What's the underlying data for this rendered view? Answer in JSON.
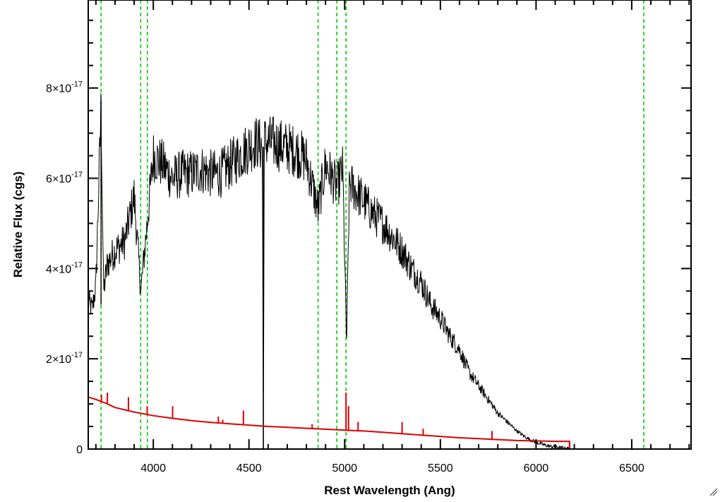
{
  "chart_data": {
    "type": "line",
    "title": "",
    "xlabel": "Rest Wavelength (Ang)",
    "ylabel": "Relative Flux (cgs)",
    "xlim": [
      3660,
      6810
    ],
    "ylim": [
      0,
      9.95e-17
    ],
    "x_ticks": [
      {
        "value": 4000,
        "label": "4000"
      },
      {
        "value": 4500,
        "label": "4500"
      },
      {
        "value": 5000,
        "label": "5000"
      },
      {
        "value": 5500,
        "label": "5500"
      },
      {
        "value": 6000,
        "label": "6000"
      },
      {
        "value": 6500,
        "label": "6500"
      }
    ],
    "y_ticks": [
      {
        "value": 0,
        "mantissa": "0",
        "exponent": ""
      },
      {
        "value": 2e-17,
        "mantissa": "2×10",
        "exponent": "-17"
      },
      {
        "value": 4e-17,
        "mantissa": "4×10",
        "exponent": "-17"
      },
      {
        "value": 6e-17,
        "mantissa": "6×10",
        "exponent": "-17"
      },
      {
        "value": 8e-17,
        "mantissa": "8×10",
        "exponent": "-17"
      }
    ],
    "grid": false,
    "series": [
      {
        "color": "#000000",
        "x": [
          3660,
          3680,
          3700,
          3727,
          3740,
          3760,
          3800,
          3850,
          3900,
          3935,
          3968,
          4000,
          4050,
          4100,
          4150,
          4200,
          4250,
          4300,
          4350,
          4400,
          4450,
          4500,
          4540,
          4570,
          4575,
          4580,
          4620,
          4680,
          4750,
          4800,
          4861,
          4900,
          4959,
          4990,
          5010,
          5025,
          5060,
          5100,
          5150,
          5200,
          5250,
          5300,
          5350,
          5400,
          5450,
          5500,
          5550,
          5600,
          5650,
          5700,
          5750,
          5800,
          5850,
          5900,
          5950,
          6000,
          6050,
          6100,
          6150,
          6175
        ],
        "y": [
          3.3e-17,
          3.1e-17,
          3.6e-17,
          7.6e-17,
          3.5e-17,
          4.1e-17,
          4.4e-17,
          4.6e-17,
          5.6e-17,
          3.5e-17,
          5e-17,
          6.5e-17,
          6.3e-17,
          6e-17,
          6.1e-17,
          6.1e-17,
          6.2e-17,
          6.1e-17,
          6.1e-17,
          6.3e-17,
          6.5e-17,
          6.7e-17,
          6.8e-17,
          6.7e-17,
          2e-18,
          6.8e-17,
          6.8e-17,
          6.7e-17,
          6.6e-17,
          6.4e-17,
          5.3e-17,
          6.3e-17,
          5.8e-17,
          6.2e-17,
          2.3e-17,
          5.9e-17,
          5.7e-17,
          5.5e-17,
          5.2e-17,
          5e-17,
          4.7e-17,
          4.4e-17,
          4e-17,
          3.7e-17,
          3.2e-17,
          2.9e-17,
          2.5e-17,
          2.2e-17,
          1.7e-17,
          1.4e-17,
          1.1e-17,
          8e-18,
          6e-18,
          4e-18,
          2.5e-18,
          1.5e-18,
          8e-19,
          4e-19,
          2e-19,
          1e-19
        ]
      },
      {
        "color": "#dd0000",
        "x": [
          3660,
          3700,
          3760,
          3800,
          3900,
          4000,
          4100,
          4200,
          4300,
          4400,
          4500,
          4600,
          4700,
          4800,
          4900,
          5000,
          5100,
          5200,
          5300,
          5400,
          5500,
          5600,
          5700,
          5800,
          5900,
          6000,
          6100,
          6175,
          6176,
          6300,
          6500,
          6810
        ],
        "y": [
          1.15e-17,
          1.1e-17,
          1e-17,
          9.2e-18,
          8.2e-18,
          7.4e-18,
          6.8e-18,
          6.3e-18,
          5.9e-18,
          5.6e-18,
          5.3e-18,
          5e-18,
          4.8e-18,
          4.6e-18,
          4.4e-18,
          4.2e-18,
          4e-18,
          3.7e-18,
          3.4e-18,
          3.1e-18,
          2.8e-18,
          2.5e-18,
          2.3e-18,
          2.1e-18,
          1.9e-18,
          1.8e-18,
          1.7e-18,
          1.7e-18,
          0,
          0,
          0,
          0
        ]
      }
    ],
    "red_spikes": [
      {
        "x": 3729,
        "y": 1.2e-17
      },
      {
        "x": 3760,
        "y": 1.25e-17
      },
      {
        "x": 3870,
        "y": 1.15e-17
      },
      {
        "x": 3968,
        "y": 9.5e-18
      },
      {
        "x": 4101,
        "y": 9.5e-18
      },
      {
        "x": 4340,
        "y": 7.2e-18
      },
      {
        "x": 4363,
        "y": 6.5e-18
      },
      {
        "x": 4471,
        "y": 8.5e-18
      },
      {
        "x": 4575,
        "y": 5.5e-18
      },
      {
        "x": 4830,
        "y": 5.5e-18
      },
      {
        "x": 5007,
        "y": 1.25e-17
      },
      {
        "x": 5020,
        "y": 9.5e-18
      },
      {
        "x": 5070,
        "y": 6e-18
      },
      {
        "x": 5300,
        "y": 6e-18
      },
      {
        "x": 5410,
        "y": 4.5e-18
      },
      {
        "x": 5770,
        "y": 4e-18
      }
    ],
    "reference_lines": {
      "color": "#00cc00",
      "x": [
        3727,
        3934,
        3969,
        4861,
        4959,
        5007,
        6563
      ]
    }
  }
}
